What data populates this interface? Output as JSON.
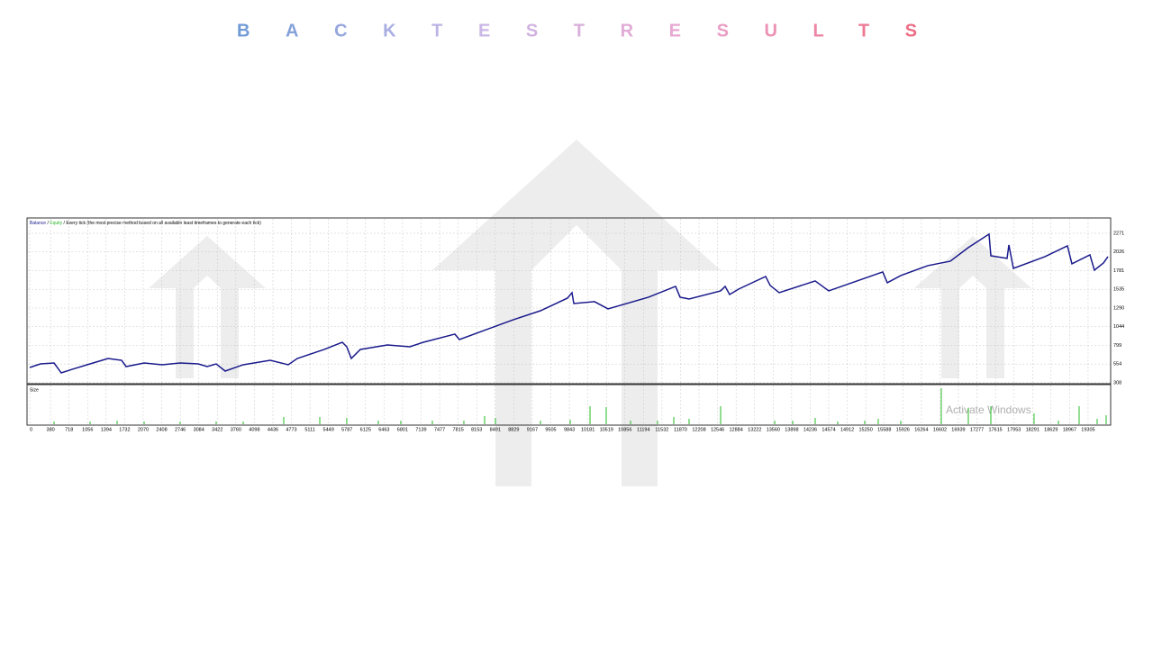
{
  "chart_data": {
    "type": "line",
    "title": "BACKTESTRESULTS",
    "title_colors": [
      "#6f9ad6",
      "#c7b8e8",
      "#eaa6cf",
      "#ee6b82"
    ],
    "annotation": "/ Every tick (the most precise method based on all available least timeframes to generate each tick)",
    "legend_separator": "/",
    "watermark": "Activate Windows",
    "series": [
      {
        "name": "Balance",
        "color": "#1a1a8c",
        "x": [
          0,
          197,
          444,
          575,
          772,
          1101,
          1429,
          1676,
          1758,
          2087,
          2415,
          2744,
          3072,
          3237,
          3401,
          3565,
          3894,
          4387,
          4715,
          4880,
          5373,
          5701,
          5783,
          5866,
          6030,
          6523,
          6933,
          7180,
          7755,
          7837,
          8330,
          8823,
          9316,
          9809,
          9891,
          9924,
          10302,
          10548,
          11288,
          11780,
          11862,
          12027,
          12602,
          12684,
          12766,
          12930,
          13423,
          13506,
          13670,
          14327,
          14574,
          15559,
          15642,
          15888,
          16381,
          16792,
          17120,
          17498,
          17531,
          17827,
          17860,
          17942,
          18517,
          18928,
          19010,
          19338,
          19420,
          19585,
          19667
        ],
        "y": [
          509,
          556,
          568,
          438,
          485,
          556,
          627,
          603,
          521,
          568,
          545,
          568,
          556,
          521,
          556,
          462,
          545,
          604,
          545,
          627,
          746,
          840,
          781,
          627,
          746,
          805,
          781,
          840,
          947,
          876,
          1006,
          1136,
          1254,
          1420,
          1491,
          1349,
          1373,
          1278,
          1432,
          1574,
          1432,
          1408,
          1515,
          1574,
          1467,
          1538,
          1704,
          1586,
          1491,
          1645,
          1515,
          1763,
          1621,
          1716,
          1846,
          1905,
          2083,
          2260,
          1976,
          1941,
          2118,
          1810,
          1964,
          2106,
          1870,
          1988,
          1787,
          1881,
          1964
        ]
      },
      {
        "name": "Equity",
        "color": "#2db82d"
      }
    ],
    "xlim": [
      0,
      19700
    ],
    "xticks": [
      0,
      380,
      718,
      1056,
      1394,
      1732,
      2070,
      2408,
      2746,
      3084,
      3422,
      3760,
      4098,
      4436,
      4773,
      5111,
      5449,
      5787,
      6125,
      6463,
      6801,
      7139,
      7477,
      7815,
      8153,
      8491,
      8829,
      9167,
      9505,
      9843,
      10181,
      10519,
      10856,
      11194,
      11532,
      11870,
      12208,
      12546,
      12884,
      13222,
      13560,
      13898,
      14236,
      14574,
      14912,
      15250,
      15588,
      15926,
      16264,
      16602,
      16939,
      17277,
      17615,
      17953,
      18291,
      18629,
      18967,
      19305
    ],
    "ylim": [
      308,
      2460
    ],
    "yticks": [
      308,
      554,
      799,
      1044,
      1290,
      1535,
      1781,
      2026,
      2271
    ],
    "grid": true,
    "size_panel": {
      "label": "Size",
      "color": "#22bb22",
      "ylim": [
        0,
        42
      ],
      "x": [
        444,
        1101,
        1594,
        2087,
        2744,
        3401,
        3894,
        4633,
        5291,
        5783,
        6358,
        6769,
        7344,
        7919,
        8297,
        8494,
        9316,
        9858,
        10220,
        10515,
        10959,
        11452,
        11748,
        12027,
        12602,
        13588,
        13917,
        14327,
        14738,
        15231,
        15477,
        15888,
        16627,
        17120,
        17531,
        18319,
        18763,
        19141,
        19470,
        19634
      ],
      "values": [
        3,
        3,
        4,
        3,
        3,
        3,
        3,
        8,
        8,
        7,
        4,
        4,
        4,
        4,
        9,
        7,
        4,
        5,
        20,
        19,
        4,
        4,
        8,
        6,
        20,
        4,
        4,
        7,
        3,
        4,
        6,
        4,
        40,
        18,
        20,
        12,
        4,
        20,
        6,
        10
      ]
    }
  }
}
